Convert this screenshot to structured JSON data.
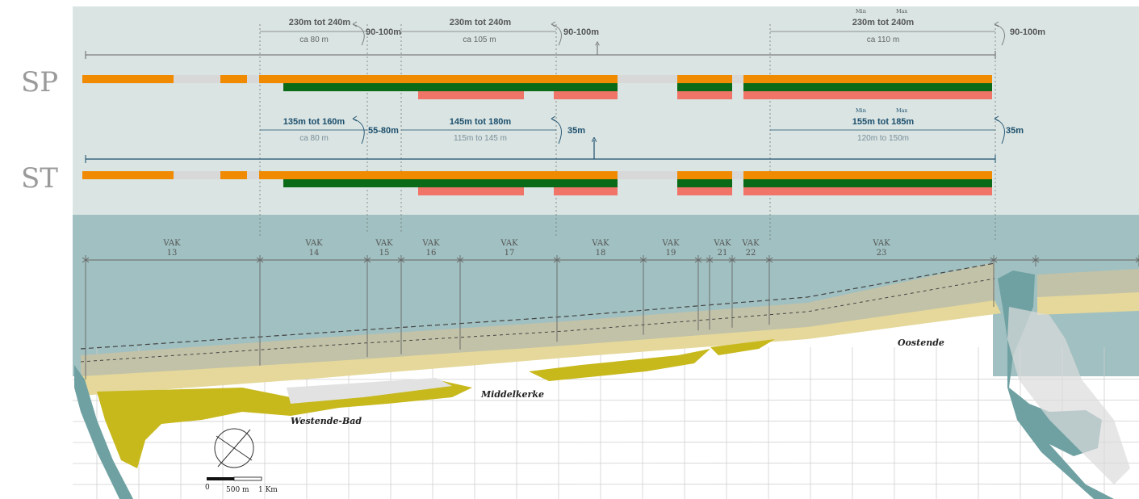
{
  "colors": {
    "top_bg": "#d9e4e3",
    "sea": "#a1c0c1",
    "orange": "#f08a00",
    "grey_seg": "#d8d8d8",
    "dark_green": "#0b6a17",
    "salmon": "#f07468",
    "text_grey": "#666666",
    "text_blue": "#1c4e6b",
    "beach_yellow": "#e5d89a",
    "dune_olive": "#c7b81c",
    "foreshore": "#c2c2a8"
  },
  "rows": [
    {
      "label": "SP"
    },
    {
      "label": "ST"
    }
  ],
  "sp": {
    "min_tag": "Min",
    "max_tag": "Max",
    "annotations": [
      {
        "main": "230m tot 240m",
        "sub": "ca 80 m",
        "turn": "90-100m"
      },
      {
        "main": "230m tot 240m",
        "sub": "ca 105 m",
        "turn": "90-100m"
      },
      {
        "main": "230m tot 240m",
        "sub": "ca 110 m",
        "turn": "90-100m"
      }
    ]
  },
  "st": {
    "min_tag": "Min",
    "max_tag": "Max",
    "annotations": [
      {
        "main": "135m tot 160m",
        "sub": "ca 80 m",
        "turn": "55-80m"
      },
      {
        "main": "145m tot 180m",
        "sub": "115m to 145 m",
        "turn": "35m"
      },
      {
        "main": "155m tot 185m",
        "sub": "120m to 150m",
        "turn": "35m"
      }
    ]
  },
  "vak_word": "VAK",
  "vakken": [
    "13",
    "14",
    "15",
    "16",
    "17",
    "18",
    "19",
    "21",
    "22",
    "23"
  ],
  "places": {
    "oostende": "Oostende",
    "middelkerke": "Middelkerke",
    "westende": "Westende-Bad"
  },
  "scale": {
    "zero": "0",
    "mid": "500 m",
    "end": "1 Km"
  }
}
